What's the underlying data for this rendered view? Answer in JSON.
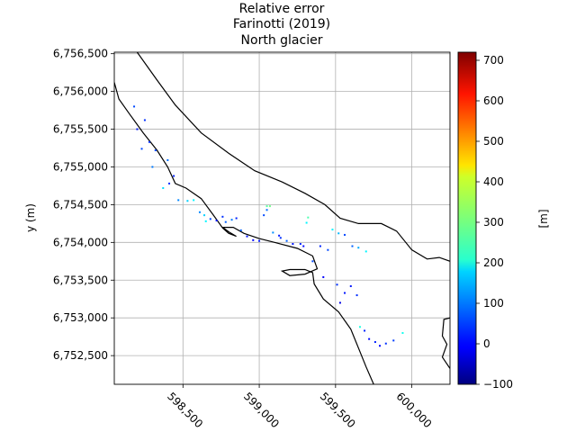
{
  "chart_data": {
    "type": "heatmap",
    "title_lines": [
      "Relative error",
      "Farinotti (2019)",
      "North glacier"
    ],
    "xlabel": "",
    "ylabel": "y (m)",
    "xlim": [
      598050,
      600250
    ],
    "ylim": [
      6752120,
      6756520
    ],
    "x_ticks": [
      598500,
      599000,
      599500,
      600000
    ],
    "x_tick_labels": [
      "598,500",
      "599,000",
      "599,500",
      "600,000"
    ],
    "y_ticks": [
      6752500,
      6753000,
      6753500,
      6754000,
      6754500,
      6755000,
      6755500,
      6756000,
      6756500
    ],
    "y_tick_labels": [
      "6,752,500",
      "6,753,000",
      "6,753,500",
      "6,754,000",
      "6,754,500",
      "6,755,000",
      "6,755,500",
      "6,756,000",
      "6,756,500"
    ],
    "grid": true,
    "colorbar": {
      "label": "[m]",
      "range": [
        -100,
        720
      ],
      "ticks": [
        -100,
        0,
        100,
        200,
        300,
        400,
        500,
        600,
        700
      ],
      "tick_labels": [
        "−100",
        "0",
        "100",
        "200",
        "300",
        "400",
        "500",
        "600",
        "700"
      ],
      "colormap": "jet"
    },
    "outline": [
      [
        598050,
        6756120
      ],
      [
        598080,
        6755900
      ],
      [
        598150,
        6755700
      ],
      [
        598240,
        6755450
      ],
      [
        598330,
        6755220
      ],
      [
        598400,
        6755000
      ],
      [
        598450,
        6754780
      ],
      [
        598520,
        6754720
      ],
      [
        598620,
        6754580
      ],
      [
        598700,
        6754360
      ],
      [
        598760,
        6754190
      ],
      [
        598800,
        6754120
      ],
      [
        598850,
        6754080
      ],
      [
        598800,
        6754140
      ],
      [
        598760,
        6754200
      ],
      [
        598830,
        6754200
      ],
      [
        598900,
        6754120
      ],
      [
        599000,
        6754050
      ],
      [
        599100,
        6754000
      ],
      [
        599250,
        6753920
      ],
      [
        599350,
        6753820
      ],
      [
        599380,
        6753650
      ],
      [
        599300,
        6753580
      ],
      [
        599200,
        6753560
      ],
      [
        599150,
        6753620
      ],
      [
        599200,
        6753640
      ],
      [
        599300,
        6753640
      ],
      [
        599350,
        6753600
      ],
      [
        599360,
        6753450
      ],
      [
        599420,
        6753250
      ],
      [
        599520,
        6753080
      ],
      [
        599600,
        6752850
      ],
      [
        599650,
        6752600
      ],
      [
        599700,
        6752350
      ],
      [
        599750,
        6752120
      ]
    ],
    "outline_upper": [
      [
        598200,
        6756520
      ],
      [
        598330,
        6756150
      ],
      [
        598450,
        6755820
      ],
      [
        598620,
        6755450
      ],
      [
        598800,
        6755180
      ],
      [
        598970,
        6754950
      ],
      [
        599150,
        6754800
      ],
      [
        599300,
        6754650
      ],
      [
        599430,
        6754500
      ],
      [
        599530,
        6754320
      ],
      [
        599650,
        6754250
      ],
      [
        599800,
        6754250
      ],
      [
        599900,
        6754150
      ],
      [
        600000,
        6753900
      ],
      [
        600100,
        6753780
      ],
      [
        600180,
        6753800
      ],
      [
        600250,
        6753750
      ]
    ],
    "outline_right": [
      [
        600250,
        6753000
      ],
      [
        600210,
        6752980
      ],
      [
        600200,
        6752760
      ],
      [
        600230,
        6752650
      ],
      [
        600200,
        6752480
      ],
      [
        600250,
        6752330
      ]
    ],
    "points": [
      [
        598180,
        6755800,
        60
      ],
      [
        598250,
        6755620,
        40
      ],
      [
        598280,
        6755330,
        40
      ],
      [
        598320,
        6755220,
        60
      ],
      [
        598400,
        6755090,
        90
      ],
      [
        598300,
        6755000,
        100
      ],
      [
        598440,
        6754880,
        30
      ],
      [
        598410,
        6754780,
        40
      ],
      [
        598470,
        6754560,
        110
      ],
      [
        598530,
        6754550,
        170
      ],
      [
        598570,
        6754560,
        200
      ],
      [
        598610,
        6754400,
        110
      ],
      [
        598640,
        6754360,
        170
      ],
      [
        598680,
        6754310,
        60
      ],
      [
        598720,
        6754290,
        20
      ],
      [
        598760,
        6754340,
        40
      ],
      [
        598780,
        6754270,
        80
      ],
      [
        598820,
        6754300,
        100
      ],
      [
        598850,
        6754320,
        30
      ],
      [
        598880,
        6754160,
        80
      ],
      [
        598920,
        6754080,
        20
      ],
      [
        598960,
        6754030,
        0
      ],
      [
        599000,
        6754020,
        20
      ],
      [
        599030,
        6754360,
        60
      ],
      [
        599050,
        6754430,
        90
      ],
      [
        599070,
        6754480,
        300
      ],
      [
        599050,
        6754480,
        280
      ],
      [
        599140,
        6754060,
        40
      ],
      [
        599180,
        6754020,
        80
      ],
      [
        599220,
        6753980,
        20
      ],
      [
        599270,
        6753980,
        30
      ],
      [
        599290,
        6753950,
        10
      ],
      [
        599310,
        6754260,
        200
      ],
      [
        599320,
        6754330,
        270
      ],
      [
        599350,
        6753750,
        60
      ],
      [
        599480,
        6754170,
        200
      ],
      [
        599520,
        6754120,
        150
      ],
      [
        599560,
        6754100,
        60
      ],
      [
        599610,
        6753950,
        80
      ],
      [
        599650,
        6753930,
        140
      ],
      [
        599700,
        6753880,
        200
      ],
      [
        599420,
        6753540,
        0
      ],
      [
        599510,
        6753440,
        40
      ],
      [
        599560,
        6753330,
        20
      ],
      [
        599600,
        6753420,
        20
      ],
      [
        599640,
        6753300,
        40
      ],
      [
        599660,
        6752880,
        230
      ],
      [
        599690,
        6752830,
        30
      ],
      [
        599720,
        6752720,
        10
      ],
      [
        599760,
        6752680,
        30
      ],
      [
        599790,
        6752630,
        10
      ],
      [
        599830,
        6752660,
        40
      ],
      [
        599880,
        6752700,
        50
      ],
      [
        599940,
        6752800,
        220
      ],
      [
        598200,
        6755500,
        20
      ],
      [
        598230,
        6755240,
        60
      ],
      [
        598370,
        6754720,
        180
      ],
      [
        598650,
        6754280,
        200
      ],
      [
        599090,
        6754130,
        120
      ],
      [
        599130,
        6754090,
        20
      ],
      [
        599400,
        6753950,
        30
      ],
      [
        599450,
        6753900,
        60
      ],
      [
        599530,
        6753200,
        -20
      ]
    ]
  }
}
